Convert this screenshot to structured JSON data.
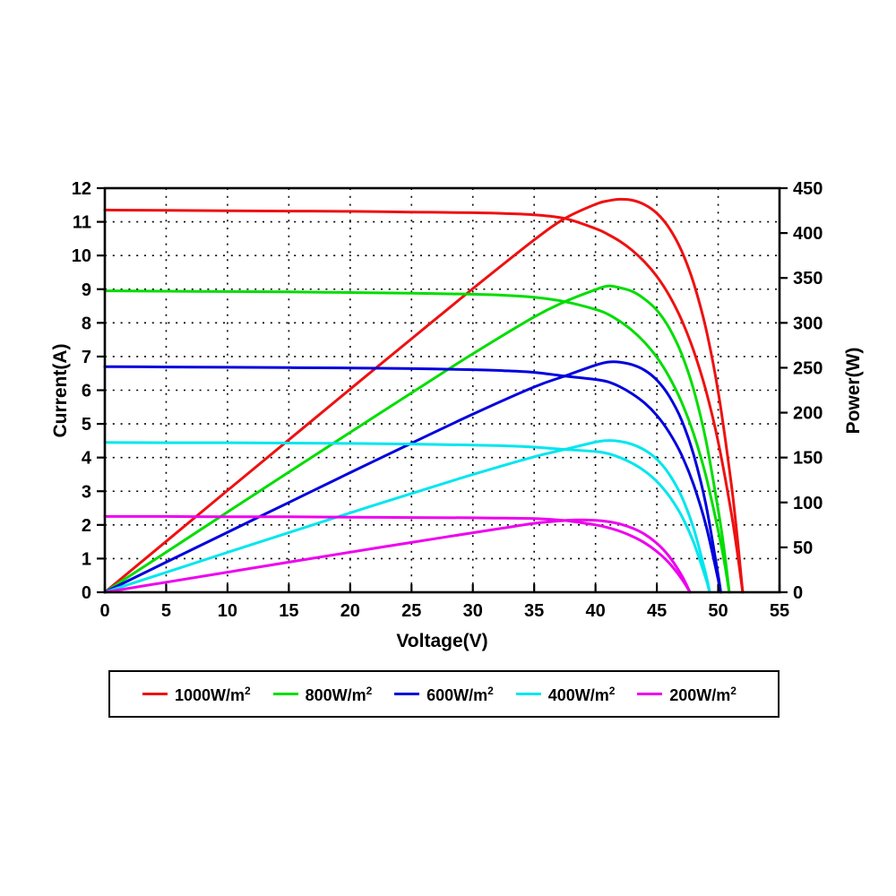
{
  "chart_data": {
    "type": "line",
    "title": "",
    "xlabel": "Voltage(V)",
    "ylabel_left": "Current(A)",
    "ylabel_right": "Power(W)",
    "xlim": [
      0,
      55
    ],
    "ylim_left": [
      0,
      12
    ],
    "ylim_right": [
      0,
      450
    ],
    "xticks": [
      0,
      5,
      10,
      15,
      20,
      25,
      30,
      35,
      40,
      45,
      50,
      55
    ],
    "yticks_left": [
      0,
      1,
      2,
      3,
      4,
      5,
      6,
      7,
      8,
      9,
      10,
      11,
      12
    ],
    "yticks_right": [
      0,
      50,
      100,
      150,
      200,
      250,
      300,
      350,
      400,
      450
    ],
    "grid": "dotted black, vertical every 5 V, horizontal every 1 A",
    "legend_position": "bottom box",
    "series": [
      {
        "name": "1000W/m2",
        "label_base": "1000W/m",
        "label_sup": "2",
        "color": "#ee1111",
        "isc_A": 11.35,
        "voc_V": 52.0,
        "pmax_W": 438,
        "vmp_V": 41.6,
        "iv_points": [
          [
            0,
            11.35
          ],
          [
            5,
            11.34
          ],
          [
            10,
            11.33
          ],
          [
            15,
            11.32
          ],
          [
            20,
            11.31
          ],
          [
            25,
            11.29
          ],
          [
            30,
            11.27
          ],
          [
            32.5,
            11.25
          ],
          [
            35,
            11.21
          ],
          [
            37.5,
            11.1
          ],
          [
            40,
            10.8
          ],
          [
            41,
            10.63
          ],
          [
            42,
            10.42
          ],
          [
            43,
            10.15
          ],
          [
            44,
            9.81
          ],
          [
            45,
            9.38
          ],
          [
            46,
            8.82
          ],
          [
            47,
            8.1
          ],
          [
            48,
            7.17
          ],
          [
            49,
            5.99
          ],
          [
            50,
            4.47
          ],
          [
            51,
            2.51
          ],
          [
            51.5,
            1.33
          ],
          [
            52,
            0
          ]
        ],
        "pv_points": [
          [
            0,
            0
          ],
          [
            5,
            56.7
          ],
          [
            10,
            113.3
          ],
          [
            15,
            169.8
          ],
          [
            20,
            226.2
          ],
          [
            25,
            282.3
          ],
          [
            30,
            338.1
          ],
          [
            35,
            392.4
          ],
          [
            37.5,
            416.3
          ],
          [
            40,
            432
          ],
          [
            41,
            435.8
          ],
          [
            42,
            437.6
          ],
          [
            43,
            436.5
          ],
          [
            44,
            431.6
          ],
          [
            45,
            422.1
          ],
          [
            46,
            405.7
          ],
          [
            47,
            380.7
          ],
          [
            48,
            344.2
          ],
          [
            49,
            293.5
          ],
          [
            50,
            223.5
          ],
          [
            51,
            128
          ],
          [
            51.5,
            68.5
          ],
          [
            52,
            0
          ]
        ]
      },
      {
        "name": "800W/m2",
        "label_base": "800W/m",
        "label_sup": "2",
        "color": "#00dd00",
        "isc_A": 8.95,
        "voc_V": 50.9,
        "pmax_W": 341,
        "vmp_V": 41.0,
        "iv_points": [
          [
            0,
            8.95
          ],
          [
            5,
            8.94
          ],
          [
            10,
            8.93
          ],
          [
            15,
            8.92
          ],
          [
            20,
            8.9
          ],
          [
            25,
            8.88
          ],
          [
            30,
            8.85
          ],
          [
            32.5,
            8.82
          ],
          [
            35,
            8.76
          ],
          [
            37.5,
            8.63
          ],
          [
            40,
            8.4
          ],
          [
            41,
            8.26
          ],
          [
            42,
            8.04
          ],
          [
            43,
            7.77
          ],
          [
            44,
            7.42
          ],
          [
            45,
            6.98
          ],
          [
            46,
            6.4
          ],
          [
            47,
            5.66
          ],
          [
            48,
            4.7
          ],
          [
            49,
            3.45
          ],
          [
            50,
            1.84
          ],
          [
            50.5,
            0.91
          ],
          [
            50.9,
            0
          ]
        ],
        "pv_points": [
          [
            0,
            0
          ],
          [
            5,
            44.7
          ],
          [
            10,
            89.3
          ],
          [
            15,
            133.8
          ],
          [
            20,
            178
          ],
          [
            25,
            222
          ],
          [
            30,
            265.5
          ],
          [
            35,
            306.6
          ],
          [
            37.5,
            323.6
          ],
          [
            40,
            337
          ],
          [
            41,
            341
          ],
          [
            42,
            339
          ],
          [
            43,
            335
          ],
          [
            44,
            326.5
          ],
          [
            45,
            314.1
          ],
          [
            46,
            294.4
          ],
          [
            47,
            266
          ],
          [
            48,
            225.6
          ],
          [
            49,
            169.1
          ],
          [
            50,
            92
          ],
          [
            50.5,
            46
          ],
          [
            50.9,
            0
          ]
        ]
      },
      {
        "name": "600W/m2",
        "label_base": "600W/m",
        "label_sup": "2",
        "color": "#0000dd",
        "isc_A": 6.7,
        "voc_V": 50.2,
        "pmax_W": 256,
        "vmp_V": 41.0,
        "iv_points": [
          [
            0,
            6.7
          ],
          [
            5,
            6.69
          ],
          [
            10,
            6.68
          ],
          [
            15,
            6.67
          ],
          [
            20,
            6.66
          ],
          [
            25,
            6.64
          ],
          [
            30,
            6.61
          ],
          [
            32.5,
            6.58
          ],
          [
            35,
            6.53
          ],
          [
            37.5,
            6.42
          ],
          [
            40,
            6.32
          ],
          [
            41,
            6.25
          ],
          [
            42,
            6.1
          ],
          [
            43,
            5.89
          ],
          [
            44,
            5.62
          ],
          [
            45,
            5.25
          ],
          [
            46,
            4.75
          ],
          [
            47,
            4.09
          ],
          [
            48,
            3.19
          ],
          [
            49,
            1.99
          ],
          [
            50,
            0.38
          ],
          [
            50.2,
            0
          ]
        ],
        "pv_points": [
          [
            0,
            0
          ],
          [
            5,
            33.5
          ],
          [
            10,
            66.8
          ],
          [
            15,
            100
          ],
          [
            20,
            133.2
          ],
          [
            25,
            166
          ],
          [
            30,
            198.3
          ],
          [
            35,
            228.6
          ],
          [
            37.5,
            240.8
          ],
          [
            40,
            252.8
          ],
          [
            41,
            256.3
          ],
          [
            42,
            256.2
          ],
          [
            43,
            253.3
          ],
          [
            44,
            247.3
          ],
          [
            45,
            236.3
          ],
          [
            46,
            218.5
          ],
          [
            47,
            192.2
          ],
          [
            48,
            153.1
          ],
          [
            49,
            97.5
          ],
          [
            50,
            19
          ],
          [
            50.2,
            0
          ]
        ]
      },
      {
        "name": "400W/m2",
        "label_base": "400W/m",
        "label_sup": "2",
        "color": "#00e6ee",
        "isc_A": 4.45,
        "voc_V": 49.3,
        "pmax_W": 169,
        "vmp_V": 41.0,
        "iv_points": [
          [
            0,
            4.45
          ],
          [
            5,
            4.44
          ],
          [
            10,
            4.44
          ],
          [
            15,
            4.43
          ],
          [
            20,
            4.42
          ],
          [
            25,
            4.4
          ],
          [
            30,
            4.37
          ],
          [
            32.5,
            4.35
          ],
          [
            35,
            4.31
          ],
          [
            37.5,
            4.24
          ],
          [
            40,
            4.18
          ],
          [
            41,
            4.12
          ],
          [
            42,
            4.0
          ],
          [
            43,
            3.83
          ],
          [
            44,
            3.6
          ],
          [
            45,
            3.29
          ],
          [
            46,
            2.86
          ],
          [
            47,
            2.28
          ],
          [
            48,
            1.48
          ],
          [
            49,
            0.4
          ],
          [
            49.3,
            0
          ]
        ],
        "pv_points": [
          [
            0,
            0
          ],
          [
            5,
            22.2
          ],
          [
            10,
            44.4
          ],
          [
            15,
            66.5
          ],
          [
            20,
            88.4
          ],
          [
            25,
            110
          ],
          [
            30,
            131.1
          ],
          [
            35,
            150.9
          ],
          [
            37.5,
            159
          ],
          [
            40,
            167.2
          ],
          [
            41,
            168.9
          ],
          [
            42,
            168
          ],
          [
            43,
            164.7
          ],
          [
            44,
            158.4
          ],
          [
            45,
            148.1
          ],
          [
            46,
            131.6
          ],
          [
            47,
            107.2
          ],
          [
            48,
            71
          ],
          [
            49,
            19.6
          ],
          [
            49.3,
            0
          ]
        ]
      },
      {
        "name": "200W/m2",
        "label_base": "200W/m",
        "label_sup": "2",
        "color": "#ee00ee",
        "isc_A": 2.25,
        "voc_V": 47.7,
        "pmax_W": 81,
        "vmp_V": 38.5,
        "iv_points": [
          [
            0,
            2.25
          ],
          [
            5,
            2.25
          ],
          [
            10,
            2.24
          ],
          [
            15,
            2.24
          ],
          [
            20,
            2.23
          ],
          [
            25,
            2.22
          ],
          [
            30,
            2.21
          ],
          [
            32.5,
            2.2
          ],
          [
            35,
            2.19
          ],
          [
            37.5,
            2.13
          ],
          [
            40,
            2.0
          ],
          [
            41,
            1.92
          ],
          [
            42,
            1.81
          ],
          [
            43,
            1.66
          ],
          [
            44,
            1.47
          ],
          [
            45,
            1.21
          ],
          [
            46,
            0.87
          ],
          [
            47,
            0.41
          ],
          [
            47.7,
            0
          ]
        ],
        "pv_points": [
          [
            0,
            0
          ],
          [
            5,
            11.2
          ],
          [
            10,
            22.4
          ],
          [
            15,
            33.5
          ],
          [
            20,
            44.6
          ],
          [
            25,
            55.5
          ],
          [
            30,
            66.3
          ],
          [
            32.5,
            71.5
          ],
          [
            35,
            76.7
          ],
          [
            37.5,
            79.9
          ],
          [
            38.5,
            80.5
          ],
          [
            40,
            80
          ],
          [
            41,
            78.7
          ],
          [
            42,
            76
          ],
          [
            43,
            71.4
          ],
          [
            44,
            64.7
          ],
          [
            45,
            54.5
          ],
          [
            46,
            40
          ],
          [
            47,
            19.3
          ],
          [
            47.7,
            0
          ]
        ]
      }
    ]
  }
}
